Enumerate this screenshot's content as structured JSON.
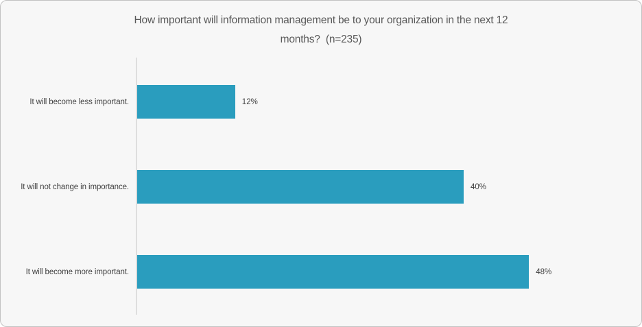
{
  "header": {
    "title_line1": "How important will information management be to your organization in the next 12",
    "title_line2": "months?  (n=235)"
  },
  "chart_data": {
    "type": "bar",
    "orientation": "horizontal",
    "title": "How important will information management be to your organization in the next 12 months?  (n=235)",
    "sample_size": 235,
    "categories": [
      "It will become less important.",
      "It will not change in importance.",
      "It will become more important."
    ],
    "values": [
      12,
      40,
      48
    ],
    "value_labels": [
      "12%",
      "40%",
      "48%"
    ],
    "xlabel": "",
    "ylabel": "",
    "xlim": [
      0,
      60
    ],
    "grid": false,
    "legend": false,
    "data_labels_position": "outside-end",
    "bar_color": "#2a9dbe",
    "axis_line_color": "#dedede",
    "background_color": "#f7f7f7",
    "label_color": "#404040",
    "title_color": "#595959"
  }
}
